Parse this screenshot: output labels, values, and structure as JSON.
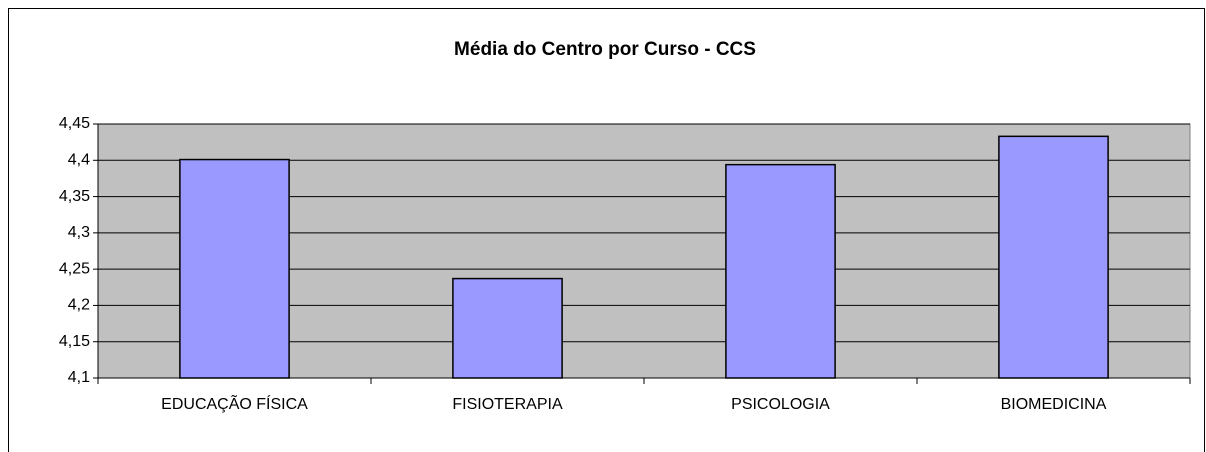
{
  "chart_data": {
    "type": "bar",
    "title": "Média do Centro por Curso - CCS",
    "categories": [
      "EDUCAÇÃO FÍSICA",
      "FISIOTERAPIA",
      "PSICOLOGIA",
      "BIOMEDICINA"
    ],
    "values": [
      4.401,
      4.237,
      4.394,
      4.433
    ],
    "color": "#9999ff",
    "ylim": [
      4.1,
      4.45
    ],
    "yticks": [
      {
        "value": 4.1,
        "label": "4,1"
      },
      {
        "value": 4.15,
        "label": "4,15"
      },
      {
        "value": 4.2,
        "label": "4,2"
      },
      {
        "value": 4.25,
        "label": "4,25"
      },
      {
        "value": 4.3,
        "label": "4,3"
      },
      {
        "value": 4.35,
        "label": "4,35"
      },
      {
        "value": 4.4,
        "label": "4,4"
      },
      {
        "value": 4.45,
        "label": "4,45"
      }
    ],
    "grid": true
  }
}
